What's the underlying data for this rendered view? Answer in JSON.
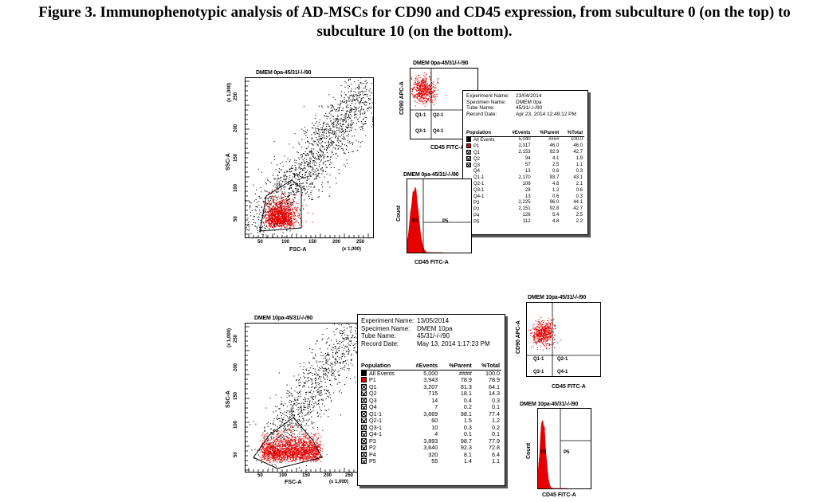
{
  "caption": {
    "line1": "Figure 3. Immunophenotypic analysis of AD-MSCs for CD90 and CD45 expression, from subculture 0 (on the top) to",
    "line2": "subculture 10 (on the bottom)."
  },
  "top": {
    "scatter": {
      "title": "DMEM 0pa-45/31/-/-/90",
      "xlabel": "FSC-A",
      "ylabel": "SSC-A",
      "xunit": "(x 1,000)",
      "yunit": "(x 1,000)",
      "xticks": [
        "50",
        "100",
        "150",
        "200",
        "250"
      ],
      "yticks": [
        "50",
        "100",
        "150",
        "200",
        "250"
      ],
      "gate": "P1"
    },
    "quad": {
      "title": "DMEM 0pa-45/31/-/-/90",
      "xlabel": "CD45 FITC-A",
      "ylabel": "CD90 APC-A",
      "labels": [
        "Q1-1",
        "Q2-1",
        "Q3-1",
        "Q4-1"
      ]
    },
    "hist": {
      "title": "DMEM 0pa-45/31/-/-/90",
      "xlabel": "CD45 FITC-A",
      "ylabel": "Count",
      "gates": [
        "P3",
        "P5"
      ]
    },
    "info": {
      "meta": [
        {
          "k": "Experiment Name:",
          "v": "23/04/2014"
        },
        {
          "k": "Specimen Name:",
          "v": "DMEM 0pa"
        },
        {
          "k": "Tube Name:",
          "v": "45/31/-/-/90"
        },
        {
          "k": "Record Date:",
          "v": "Apr 23, 2014 12:49:12 PM"
        }
      ],
      "headers": [
        "Population",
        "#Events",
        "%Parent",
        "%Total"
      ],
      "rows": [
        {
          "name": "All Events",
          "sw": "black",
          "e": "5,040",
          "p": "####",
          "t": "100.0"
        },
        {
          "name": "P1",
          "sw": "red",
          "e": "2,317",
          "p": "46.0",
          "t": "46.0"
        },
        {
          "name": "Q1",
          "sw": "x",
          "e": "2,153",
          "p": "92.9",
          "t": "42.7"
        },
        {
          "name": "Q2",
          "sw": "x",
          "e": "94",
          "p": "4.1",
          "t": "1.9"
        },
        {
          "name": "Q3",
          "sw": "x",
          "e": "57",
          "p": "2.5",
          "t": "1.1"
        },
        {
          "name": "Q4",
          "sw": "",
          "e": "13",
          "p": "0.6",
          "t": "0.3"
        },
        {
          "name": "Q1-1",
          "sw": "",
          "e": "2,170",
          "p": "93.7",
          "t": "43.1"
        },
        {
          "name": "Q2-1",
          "sw": "",
          "e": "106",
          "p": "4.6",
          "t": "2.1"
        },
        {
          "name": "Q3-1",
          "sw": "",
          "e": "28",
          "p": "1.2",
          "t": "0.6"
        },
        {
          "name": "Q4-1",
          "sw": "",
          "e": "13",
          "p": "0.6",
          "t": "0.3"
        },
        {
          "name": "P3",
          "sw": "",
          "e": "2,225",
          "p": "96.0",
          "t": "44.1"
        },
        {
          "name": "P2",
          "sw": "",
          "e": "2,151",
          "p": "92.8",
          "t": "42.7"
        },
        {
          "name": "P4",
          "sw": "",
          "e": "126",
          "p": "5.4",
          "t": "2.5"
        },
        {
          "name": "P5",
          "sw": "",
          "e": "112",
          "p": "4.8",
          "t": "2.2"
        }
      ]
    }
  },
  "bottom": {
    "scatter": {
      "title": "DMEM 10pa-45/31/-/-/90",
      "xlabel": "FSC-A",
      "ylabel": "SSC-A",
      "xunit": "(x 1,000)",
      "yunit": "(x 1,000)",
      "xticks": [
        "50",
        "100",
        "150",
        "200",
        "250"
      ],
      "yticks": [
        "50",
        "100",
        "150",
        "200",
        "250"
      ],
      "gate": "P1"
    },
    "quad": {
      "title": "DMEM 10pa-45/31/-/-/90",
      "xlabel": "CD45 FITC-A",
      "ylabel": "CD90 APC-A",
      "labels": [
        "Q1-1",
        "Q2-1",
        "Q3-1",
        "Q4-1"
      ]
    },
    "hist": {
      "title": "DMEM 10pa-45/31/-/-/90",
      "xlabel": "CD45 FITC-A",
      "ylabel": "Count",
      "gates": [
        "P3",
        "P5"
      ]
    },
    "info": {
      "meta": [
        {
          "k": "Experiment Name:",
          "v": "13/05/2014"
        },
        {
          "k": "Specimen Name:",
          "v": "DMEM 10pa"
        },
        {
          "k": "Tube Name:",
          "v": "45/31/-/-/90"
        },
        {
          "k": "Record Date:",
          "v": "May 13, 2014 1:17:23 PM"
        }
      ],
      "headers": [
        "Population",
        "#Events",
        "%Parent",
        "%Total"
      ],
      "rows": [
        {
          "name": "All Events",
          "sw": "black",
          "e": "5,000",
          "p": "####",
          "t": "100.0"
        },
        {
          "name": "P1",
          "sw": "red",
          "e": "3,943",
          "p": "78.9",
          "t": "78.9"
        },
        {
          "name": "Q1",
          "sw": "x",
          "e": "3,207",
          "p": "81.3",
          "t": "64.1"
        },
        {
          "name": "Q2",
          "sw": "x",
          "e": "715",
          "p": "18.1",
          "t": "14.3"
        },
        {
          "name": "Q3",
          "sw": "x",
          "e": "14",
          "p": "0.4",
          "t": "0.3"
        },
        {
          "name": "Q4",
          "sw": "x",
          "e": "7",
          "p": "0.2",
          "t": "0.1"
        },
        {
          "name": "Q1-1",
          "sw": "x",
          "e": "3,869",
          "p": "98.1",
          "t": "77.4"
        },
        {
          "name": "Q2-1",
          "sw": "x",
          "e": "60",
          "p": "1.5",
          "t": "1.2"
        },
        {
          "name": "Q3-1",
          "sw": "x",
          "e": "10",
          "p": "0.3",
          "t": "0.2"
        },
        {
          "name": "Q4-1",
          "sw": "x",
          "e": "4",
          "p": "0.1",
          "t": "0.1"
        },
        {
          "name": "P3",
          "sw": "x",
          "e": "3,893",
          "p": "98.7",
          "t": "77.9"
        },
        {
          "name": "P2",
          "sw": "x",
          "e": "3,640",
          "p": "92.3",
          "t": "72.8"
        },
        {
          "name": "P4",
          "sw": "x",
          "e": "320",
          "p": "8.1",
          "t": "6.4"
        },
        {
          "name": "P5",
          "sw": "x",
          "e": "55",
          "p": "1.4",
          "t": "1.1"
        }
      ]
    }
  },
  "colors": {
    "events": "#e60000",
    "dots": "#000000"
  }
}
